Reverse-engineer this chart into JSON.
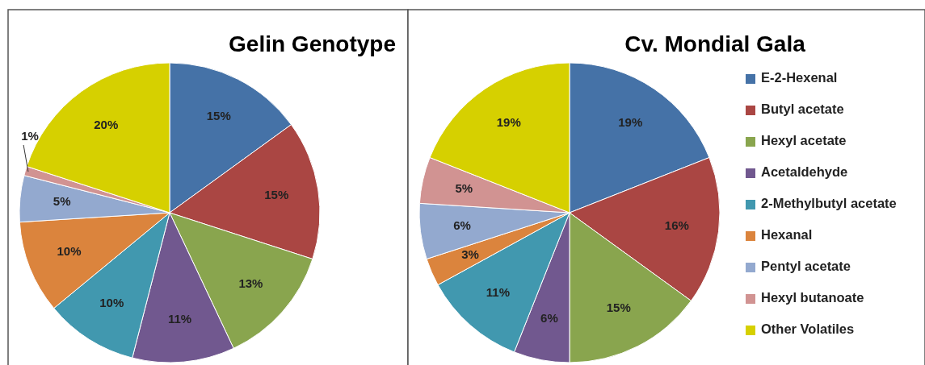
{
  "chart_data": [
    {
      "type": "pie",
      "title": "Gelin Genotype",
      "categories": [
        null,
        null,
        null,
        null,
        null,
        null,
        null,
        null,
        null
      ],
      "values": [
        15,
        15,
        13,
        11,
        10,
        10,
        5,
        1,
        20
      ],
      "colors": [
        "#4572a7",
        "#aa4643",
        "#89a54e",
        "#71588f",
        "#4198af",
        "#db843d",
        "#93a9cf",
        "#d19392",
        "#d6d000"
      ],
      "value_labels": [
        "15%",
        "15%",
        "13%",
        "11%",
        "10%",
        "10%",
        "5%",
        "1%",
        "20%"
      ],
      "legend": false
    },
    {
      "type": "pie",
      "title": "Cv. Mondial Gala",
      "categories": [
        "E-2-Hexenal",
        "Butyl acetate",
        "Hexyl acetate",
        "Acetaldehyde",
        "2-Methylbutyl acetate",
        "Hexanal",
        "Pentyl acetate",
        "Hexyl butanoate",
        "Other Volatiles"
      ],
      "values": [
        19,
        16,
        15,
        6,
        11,
        3,
        6,
        5,
        19
      ],
      "colors": [
        "#4572a7",
        "#aa4643",
        "#89a54e",
        "#71588f",
        "#4198af",
        "#db843d",
        "#93a9cf",
        "#d19392",
        "#d6d000"
      ],
      "value_labels": [
        "19%",
        "16%",
        "15%",
        "6%",
        "11%",
        "3%",
        "6%",
        "5%",
        "19%"
      ],
      "legend": "right"
    }
  ]
}
